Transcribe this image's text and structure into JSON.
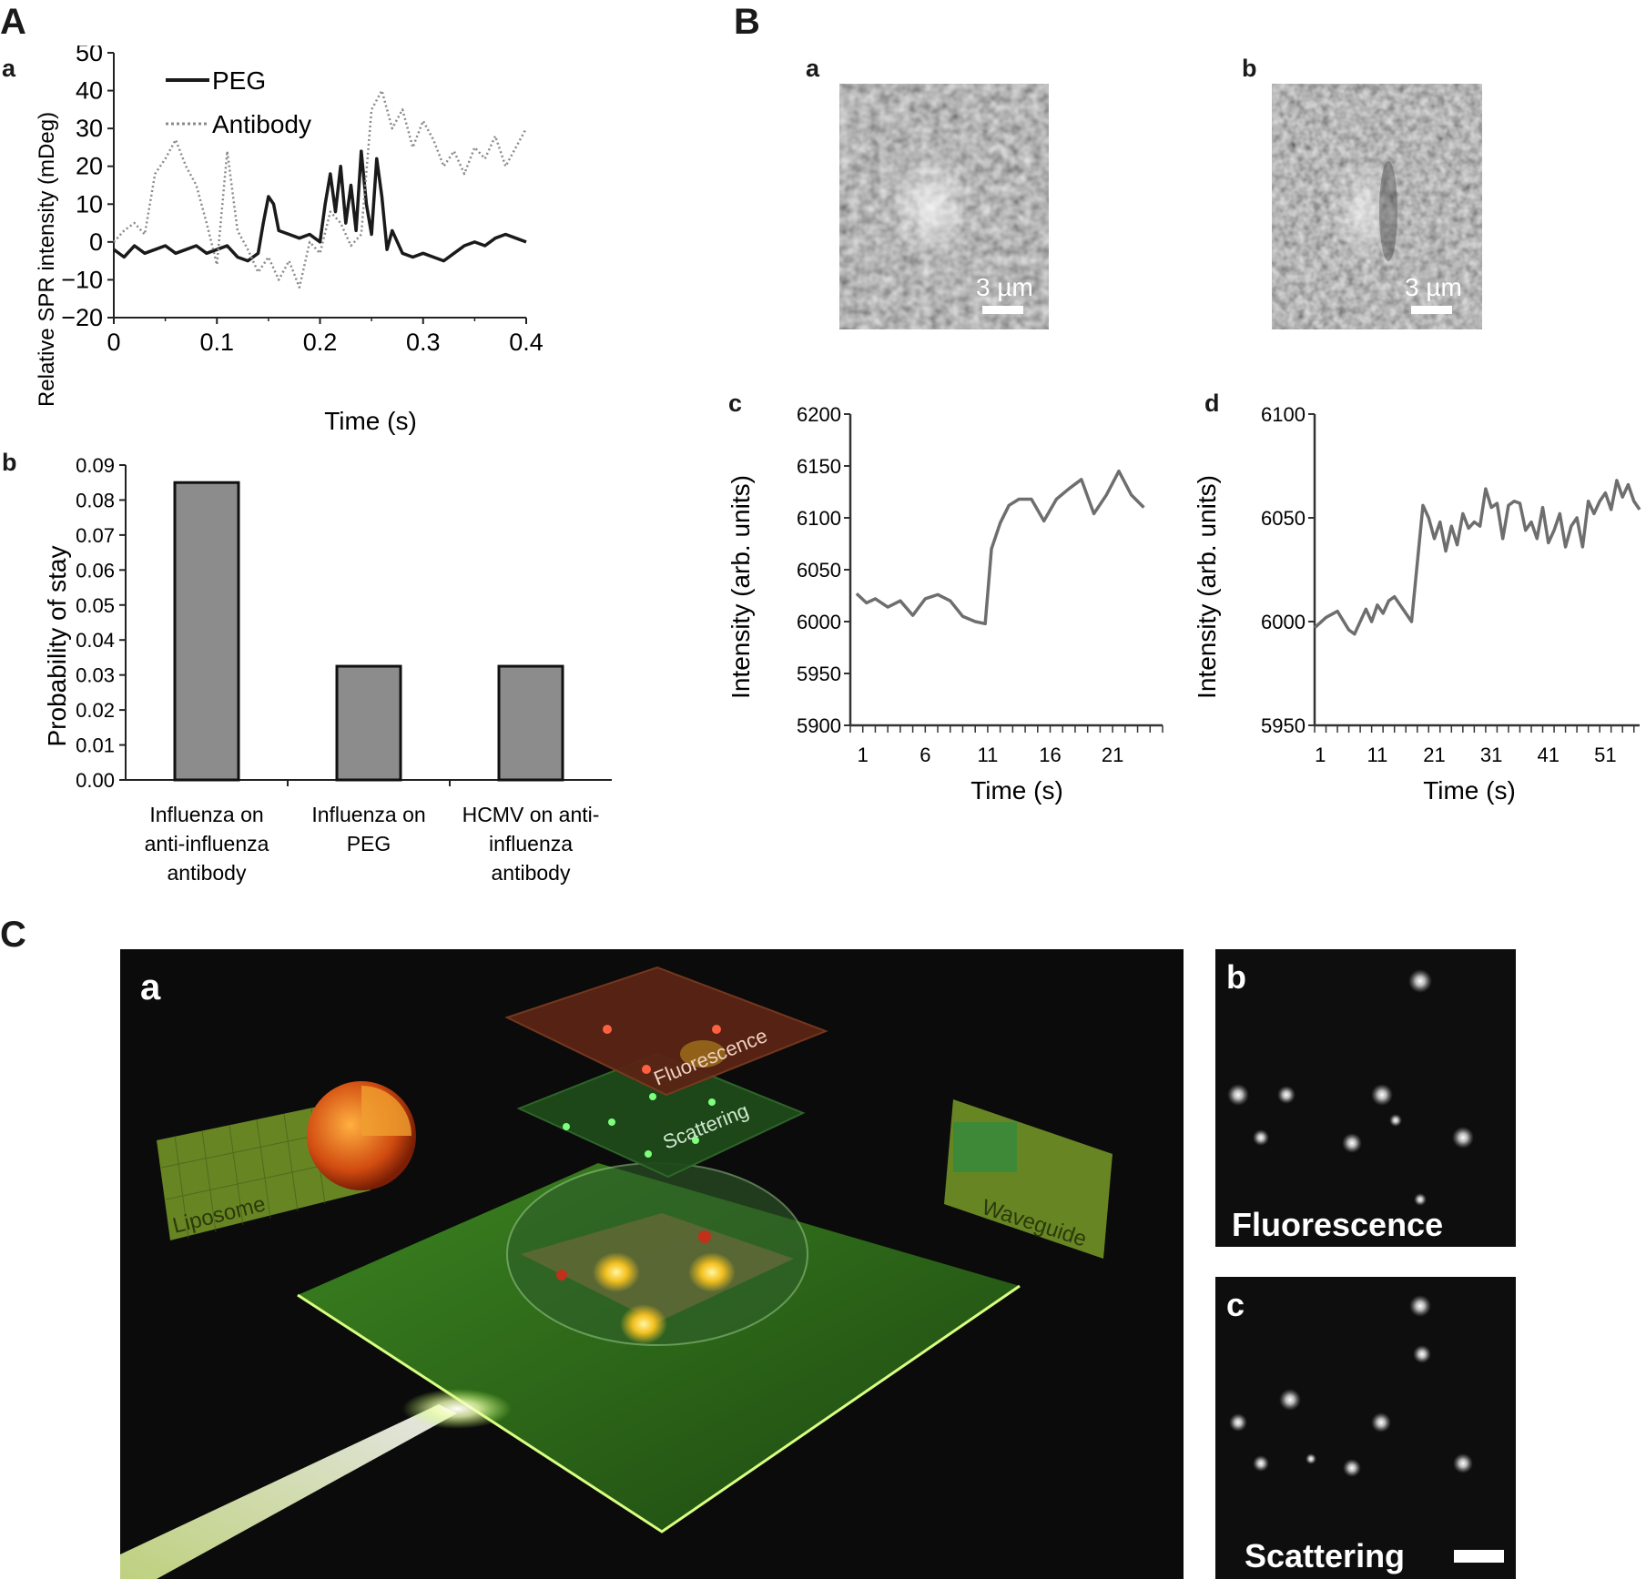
{
  "panels": {
    "A": "A",
    "B": "B",
    "C": "C",
    "Aa": "a",
    "Ab": "b",
    "Ba": "a",
    "Bb": "b",
    "Bc": "c",
    "Bd": "d",
    "Ca": "a",
    "Cb": "b",
    "Cc": "c"
  },
  "micrographs": {
    "Ba_scale": "3 µm",
    "Bb_scale": "3 µm",
    "Cb_label": "Fluorescence",
    "Cc_label": "Scattering"
  },
  "illustration": {
    "liposome": "Liposome",
    "fluorescence": "Fluorescence",
    "scattering": "Scattering",
    "waveguide": "Waveguide",
    "colors": {
      "background": "#0b0b0b",
      "glow": "#a8e060",
      "plate": "#2d6a1a",
      "fluor_plate": "#6a2a18"
    }
  },
  "chart_data": [
    {
      "id": "Aa",
      "type": "line",
      "xlabel": "Time (s)",
      "ylabel": "Relative SPR intensity (mDeg)",
      "xlim": [
        0,
        0.4
      ],
      "ylim": [
        -20,
        50
      ],
      "xticks": [
        "0",
        "0.1",
        "0.2",
        "0.3",
        "0.4"
      ],
      "yticks": [
        "−20",
        "−10",
        "0",
        "10",
        "20",
        "30",
        "40",
        "50"
      ],
      "legend_position": "top-left",
      "series": [
        {
          "name": "PEG",
          "style": "solid",
          "color": "#1a1a1a",
          "x": [
            0,
            0.01,
            0.02,
            0.03,
            0.04,
            0.05,
            0.06,
            0.07,
            0.08,
            0.09,
            0.1,
            0.11,
            0.12,
            0.13,
            0.14,
            0.145,
            0.15,
            0.155,
            0.16,
            0.17,
            0.18,
            0.19,
            0.2,
            0.205,
            0.21,
            0.215,
            0.22,
            0.225,
            0.23,
            0.235,
            0.24,
            0.245,
            0.25,
            0.255,
            0.26,
            0.265,
            0.27,
            0.28,
            0.29,
            0.3,
            0.31,
            0.32,
            0.33,
            0.34,
            0.35,
            0.36,
            0.37,
            0.38,
            0.39,
            0.4
          ],
          "y": [
            -2,
            -4,
            -1,
            -3,
            -2,
            -1,
            -3,
            -2,
            -1,
            -3,
            -2,
            -1,
            -4,
            -5,
            -3,
            5,
            12,
            10,
            3,
            2,
            1,
            2,
            0,
            10,
            18,
            8,
            20,
            5,
            15,
            3,
            24,
            10,
            2,
            22,
            12,
            -2,
            3,
            -3,
            -4,
            -3,
            -4,
            -5,
            -3,
            -1,
            0,
            -1,
            1,
            2,
            1,
            0
          ]
        },
        {
          "name": "Antibody",
          "style": "dotted",
          "color": "#8a8a8a",
          "x": [
            0,
            0.01,
            0.02,
            0.03,
            0.04,
            0.05,
            0.06,
            0.07,
            0.08,
            0.09,
            0.1,
            0.11,
            0.12,
            0.13,
            0.14,
            0.15,
            0.16,
            0.17,
            0.18,
            0.19,
            0.2,
            0.21,
            0.22,
            0.23,
            0.24,
            0.25,
            0.26,
            0.27,
            0.28,
            0.29,
            0.3,
            0.31,
            0.32,
            0.33,
            0.34,
            0.35,
            0.36,
            0.37,
            0.38,
            0.39,
            0.4
          ],
          "y": [
            0,
            3,
            5,
            2,
            18,
            22,
            27,
            20,
            15,
            5,
            -6,
            24,
            3,
            -2,
            -8,
            -4,
            -10,
            -5,
            -12,
            0,
            -3,
            8,
            5,
            -1,
            2,
            35,
            40,
            30,
            35,
            25,
            32,
            27,
            20,
            24,
            18,
            25,
            22,
            28,
            20,
            25,
            30
          ]
        }
      ]
    },
    {
      "id": "Ab",
      "type": "bar",
      "ylabel": "Probability of stay",
      "ylim": [
        0,
        0.09
      ],
      "yticks": [
        "0.00",
        "0.01",
        "0.02",
        "0.03",
        "0.04",
        "0.05",
        "0.06",
        "0.07",
        "0.08",
        "0.09"
      ],
      "categories": [
        [
          "Influenza on",
          "anti-influenza",
          "antibody"
        ],
        [
          "Influenza on",
          "PEG"
        ],
        [
          "HCMV on anti-",
          "influenza",
          "antibody"
        ]
      ],
      "values": [
        0.085,
        0.0325,
        0.0325
      ],
      "color": "#8c8c8c"
    },
    {
      "id": "Bc",
      "type": "line",
      "xlabel": "Time (s)",
      "ylabel": "Intensity (arb. units)",
      "xlim": [
        0,
        25
      ],
      "ylim": [
        5900,
        6200
      ],
      "xticks": [
        "1",
        "6",
        "11",
        "16",
        "21"
      ],
      "yticks": [
        "5900",
        "5950",
        "6000",
        "6050",
        "6100",
        "6150",
        "6200"
      ],
      "color": "#6e6e6e",
      "x": [
        0.5,
        1.3,
        2,
        3,
        4,
        5,
        6,
        7,
        8,
        9,
        10,
        10.8,
        11.3,
        12,
        12.7,
        13.5,
        14.5,
        15.5,
        16.5,
        17.5,
        18.5,
        19.5,
        20.5,
        21.5,
        22.5,
        23.5
      ],
      "y": [
        6027,
        6018,
        6022,
        6014,
        6020,
        6006,
        6022,
        6026,
        6020,
        6005,
        6000,
        5998,
        6070,
        6095,
        6112,
        6118,
        6118,
        6097,
        6118,
        6128,
        6137,
        6104,
        6122,
        6145,
        6122,
        6110
      ]
    },
    {
      "id": "Bd",
      "type": "line",
      "xlabel": "Time (s)",
      "ylabel": "Intensity (arb. units)",
      "xlim": [
        0,
        57
      ],
      "ylim": [
        5950,
        6100
      ],
      "xticks": [
        "1",
        "11",
        "21",
        "31",
        "41",
        "51"
      ],
      "yticks": [
        "5950",
        "6000",
        "6050",
        "6100"
      ],
      "color": "#6e6e6e",
      "x": [
        0,
        2,
        4,
        6,
        7,
        9,
        10,
        11,
        12,
        13,
        14,
        15,
        16,
        17,
        18,
        19,
        20,
        21,
        22,
        23,
        24,
        25,
        26,
        27,
        28,
        29,
        30,
        31,
        32,
        33,
        34,
        35,
        36,
        37,
        38,
        39,
        40,
        41,
        42,
        43,
        44,
        45,
        46,
        47,
        48,
        49,
        50,
        51,
        52,
        53,
        54,
        55,
        56,
        57
      ],
      "y": [
        5997,
        6002,
        6005,
        5996,
        5994,
        6006,
        6000,
        6008,
        6004,
        6010,
        6012,
        6008,
        6004,
        6000,
        6028,
        6056,
        6050,
        6040,
        6048,
        6034,
        6046,
        6037,
        6052,
        6045,
        6048,
        6046,
        6064,
        6055,
        6057,
        6040,
        6056,
        6058,
        6057,
        6044,
        6048,
        6040,
        6055,
        6038,
        6044,
        6052,
        6036,
        6046,
        6050,
        6036,
        6058,
        6052,
        6058,
        6062,
        6054,
        6068,
        6060,
        6066,
        6058,
        6054
      ]
    }
  ]
}
